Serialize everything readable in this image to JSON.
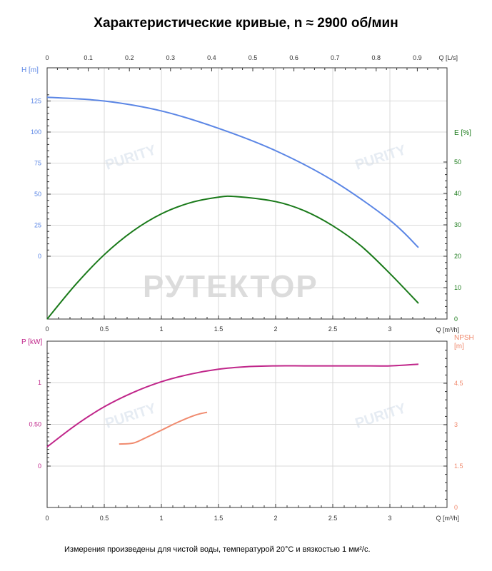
{
  "title": "Характеристические кривые, n ≈ 2900 об/мин",
  "footnote": "Измерения произведены для чистой воды, температурой 20°C и вязкостью 1 мм²/с.",
  "watermarks": {
    "main": "РУТЕКТОР",
    "brand": "PURITY"
  },
  "colors": {
    "head": "#5b86e5",
    "efficiency": "#1a7a1a",
    "power": "#c0268a",
    "npsh": "#f08a6e",
    "grid": "#d9d9d9"
  },
  "chart_data": [
    {
      "type": "line",
      "panel": "upper",
      "x_top": {
        "label": "Q [L/s]",
        "ticks": [
          "0",
          "0.1",
          "0.2",
          "0.3",
          "0.4",
          "0.5",
          "0.6",
          "0.7",
          "0.8",
          "0.9"
        ]
      },
      "x_bottom": {
        "label": "Q [m³/h]",
        "ticks": [
          "0",
          "0.5",
          "1",
          "1.5",
          "2",
          "2.5",
          "3"
        ]
      },
      "y_left": {
        "label": "H [m]",
        "ticks": [
          "0",
          "25",
          "50",
          "75",
          "100",
          "125"
        ]
      },
      "y_right": {
        "label": "E [%]",
        "ticks": [
          "0",
          "10",
          "20",
          "30",
          "40",
          "50"
        ]
      },
      "xlim": [
        0,
        3.5
      ],
      "grid": true,
      "series": [
        {
          "name": "H",
          "axis": "left",
          "x": [
            0,
            0.5,
            1,
            1.5,
            2,
            2.5,
            3,
            3.25
          ],
          "y": [
            128,
            125,
            117,
            103,
            85,
            61,
            29,
            7
          ]
        },
        {
          "name": "E",
          "axis": "right",
          "x": [
            0,
            0.25,
            0.5,
            0.75,
            1,
            1.25,
            1.5,
            1.65,
            2,
            2.25,
            2.5,
            2.75,
            3,
            3.25
          ],
          "y": [
            0,
            11,
            20.5,
            28,
            33.5,
            37,
            38.8,
            39,
            37.4,
            34.5,
            29.7,
            23.2,
            14.5,
            5
          ]
        }
      ]
    },
    {
      "type": "line",
      "panel": "lower",
      "x": {
        "label": "Q [m³/h]",
        "ticks": [
          "0",
          "0.5",
          "1",
          "1.5",
          "2",
          "2.5",
          "3"
        ]
      },
      "y_left": {
        "label": "P [kW]",
        "ticks": [
          "0",
          "0.50",
          "1"
        ]
      },
      "y_right": {
        "label": "NPSH\n[m]",
        "ticks": [
          "0",
          "1.5",
          "3",
          "4.5"
        ]
      },
      "xlim": [
        0,
        3.5
      ],
      "grid": true,
      "series": [
        {
          "name": "P",
          "axis": "left",
          "x": [
            0,
            0.25,
            0.5,
            0.75,
            1,
            1.25,
            1.5,
            1.75,
            2,
            2.25,
            2.5,
            2.75,
            3,
            3.25
          ],
          "y": [
            0.23,
            0.49,
            0.71,
            0.88,
            1.01,
            1.1,
            1.16,
            1.19,
            1.2,
            1.2,
            1.2,
            1.2,
            1.2,
            1.22
          ]
        },
        {
          "name": "NPSH",
          "axis": "right",
          "x": [
            0.63,
            0.75,
            0.85,
            1,
            1.15,
            1.3,
            1.4
          ],
          "y": [
            2.3,
            2.33,
            2.5,
            2.8,
            3.1,
            3.35,
            3.45
          ]
        }
      ]
    }
  ]
}
